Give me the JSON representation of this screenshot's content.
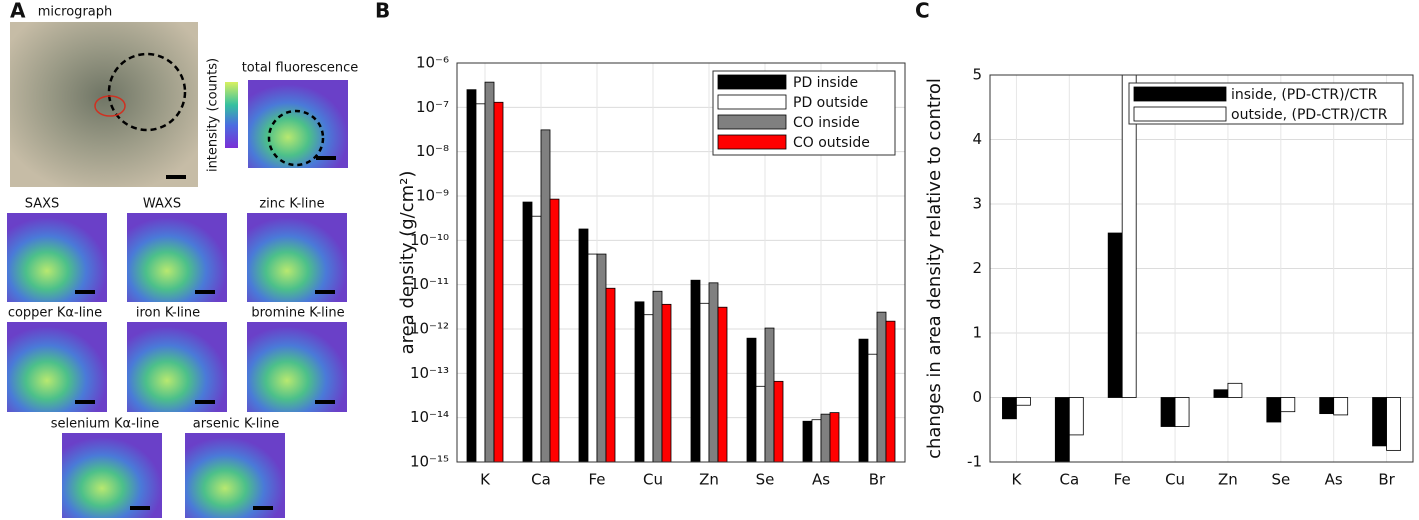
{
  "panel_a": {
    "label": "A",
    "colorbar_label": "intensity (counts)",
    "images": [
      "micrograph",
      "total fluorescence",
      "SAXS",
      "WAXS",
      "zinc K-line",
      "copper Kα-line",
      "iron K-line",
      "bromine K-line",
      "selenium Kα-line",
      "arsenic K-line"
    ]
  },
  "chart_data": [
    {
      "type": "bar",
      "panel": "B",
      "y_label": "area density (g/cm²)",
      "log_scale": true,
      "grid": true,
      "legend": "upper right",
      "categories": [
        "K",
        "Ca",
        "Fe",
        "Cu",
        "Zn",
        "Se",
        "As",
        "Br"
      ],
      "series": [
        {
          "name": "PD inside",
          "color": "#000000",
          "values": [
            2.5e-07,
            7.3e-10,
            1.8e-10,
            4.1e-12,
            1.26e-11,
            6.2e-13,
            8.3e-15,
            5.9e-13
          ]
        },
        {
          "name": "PD outside",
          "color": "#ffffff",
          "values": [
            1.2e-07,
            3.5e-10,
            4.9e-11,
            2.1e-12,
            3.8e-12,
            5.1e-14,
            9e-15,
            2.7e-13
          ]
        },
        {
          "name": "CO inside",
          "color": "#808080",
          "values": [
            3.7e-07,
            3.1e-08,
            4.9e-11,
            7.1e-12,
            1.1e-11,
            1.05e-12,
            1.2e-14,
            2.4e-12
          ]
        },
        {
          "name": "CO outside",
          "color": "#ff0000",
          "values": [
            1.3e-07,
            8.5e-10,
            8.3e-12,
            3.6e-12,
            3.1e-12,
            6.6e-14,
            1.3e-14,
            1.5e-12
          ]
        }
      ],
      "ylim": [
        1e-15,
        1e-06
      ],
      "yticks": [
        {
          "value": 1e-15,
          "label": "10⁻¹⁵"
        },
        {
          "value": 1e-14,
          "label": "10⁻¹⁴"
        },
        {
          "value": 1e-13,
          "label": "10⁻¹³"
        },
        {
          "value": 1e-12,
          "label": "10⁻¹²"
        },
        {
          "value": 1e-11,
          "label": "10⁻¹¹"
        },
        {
          "value": 1e-10,
          "label": "10⁻¹⁰"
        },
        {
          "value": 1e-09,
          "label": "10⁻⁹"
        },
        {
          "value": 1e-08,
          "label": "10⁻⁸"
        },
        {
          "value": 1e-07,
          "label": "10⁻⁷"
        },
        {
          "value": 1e-06,
          "label": "10⁻⁶"
        }
      ]
    },
    {
      "type": "bar",
      "panel": "C",
      "y_label": "changes in area density relative to control",
      "log_scale": false,
      "grid": true,
      "legend": "upper right",
      "categories": [
        "K",
        "Ca",
        "Fe",
        "Cu",
        "Zn",
        "Se",
        "As",
        "Br"
      ],
      "series": [
        {
          "name": "inside, (PD-CTR)/CTR",
          "color": "#000000",
          "values": [
            -0.33,
            -1,
            2.55,
            -0.45,
            0.12,
            -0.38,
            -0.25,
            -0.75
          ]
        },
        {
          "name": "outside, (PD-CTR)/CTR",
          "color": "#ffffff",
          "values": [
            -0.12,
            -0.58,
            5,
            -0.45,
            0.22,
            -0.22,
            -0.27,
            -0.82
          ]
        }
      ],
      "ylim": [
        -1,
        5
      ],
      "yticks": [
        -1,
        0,
        1,
        2,
        3,
        4,
        5
      ]
    }
  ]
}
